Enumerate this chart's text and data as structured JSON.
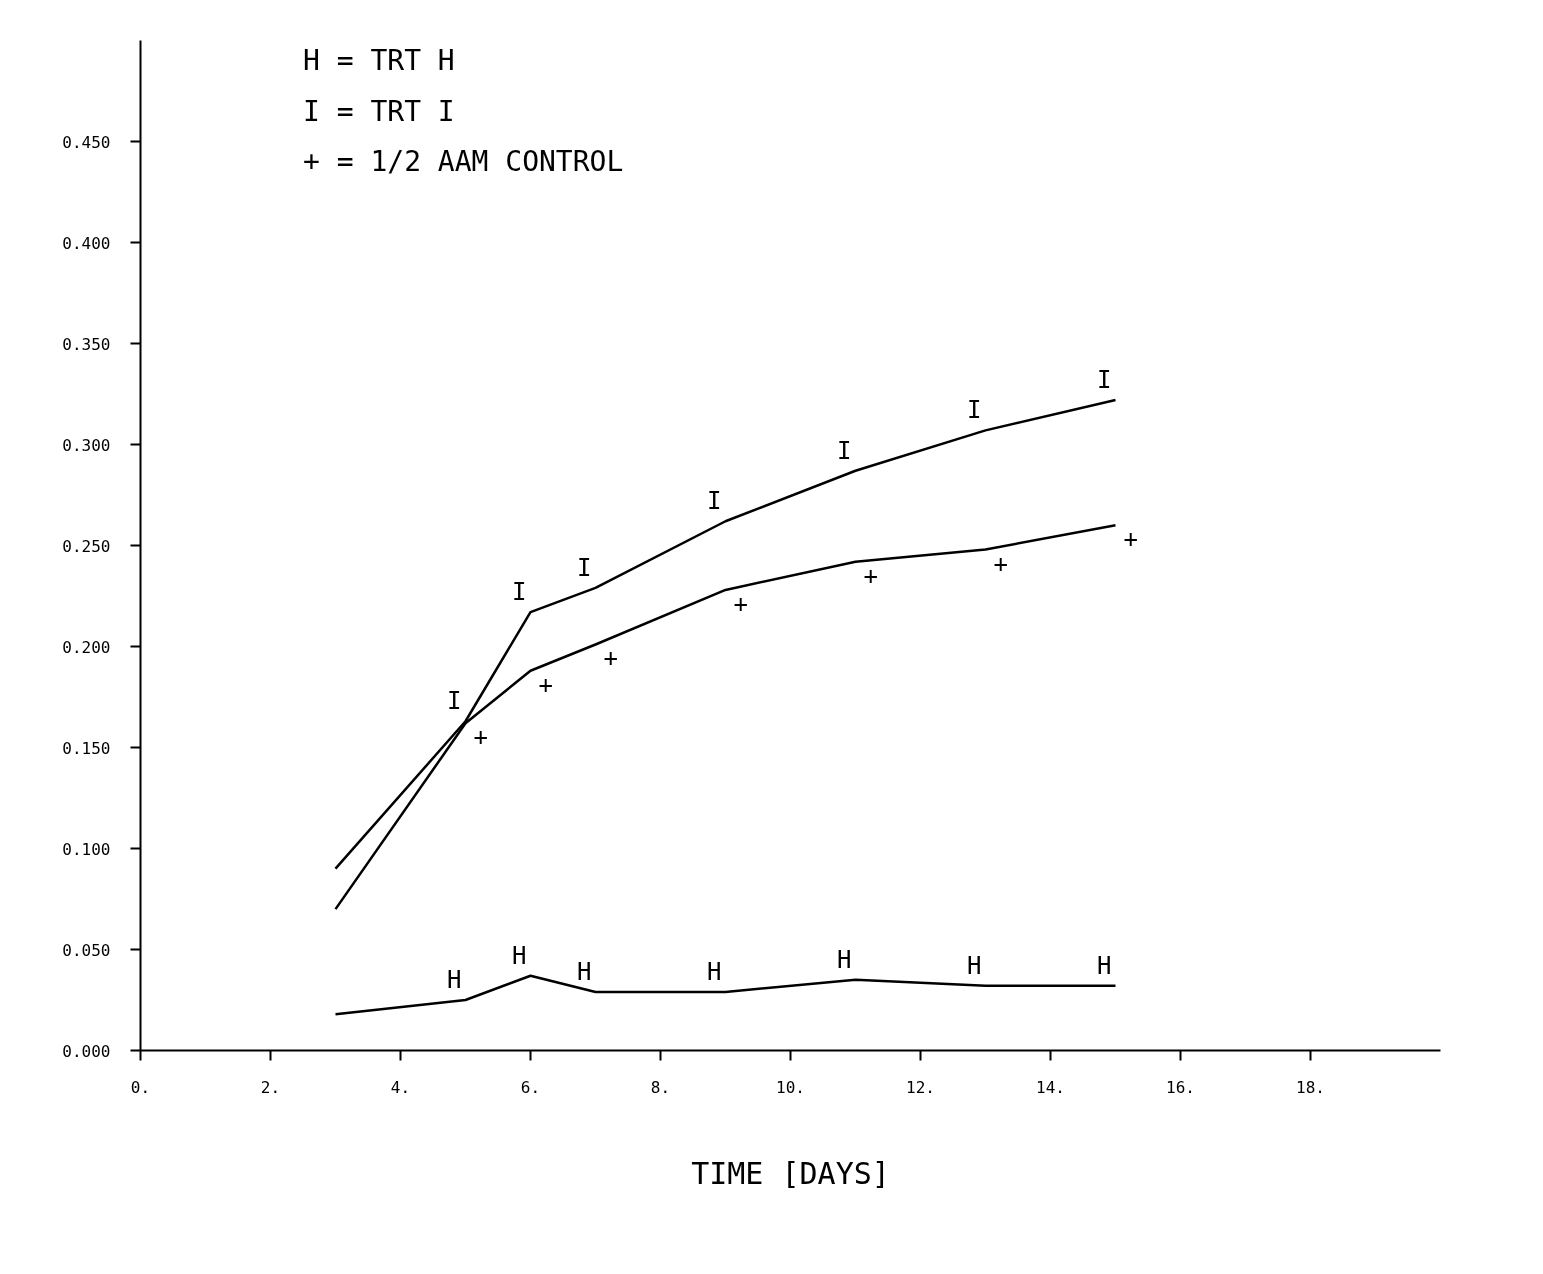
{
  "chart_data": {
    "type": "line",
    "xlabel": "TIME [DAYS]",
    "x": [
      3,
      5,
      6,
      7,
      9,
      11,
      13,
      15
    ],
    "series": [
      {
        "color": "#000000",
        "values": [
          0.018,
          0.025,
          0.037,
          0.029,
          0.029,
          0.035,
          0.032,
          0.032
        ],
        "value_labels": [
          null,
          "H",
          "H",
          "H",
          "H",
          "H",
          "H",
          "H"
        ]
      },
      {
        "color": "#000000",
        "values": [
          0.09,
          0.163,
          0.217,
          0.229,
          0.262,
          0.287,
          0.307,
          0.322
        ],
        "value_labels": [
          null,
          "I",
          "I",
          "I",
          "I",
          "I",
          "I",
          "I"
        ]
      },
      {
        "color": "#000000",
        "values": [
          0.07,
          0.162,
          0.188,
          0.201,
          0.228,
          0.242,
          0.248,
          0.26
        ],
        "value_labels": [
          null,
          "+",
          "+",
          "+",
          "+",
          "+",
          "+",
          "+"
        ]
      }
    ],
    "annotations": [
      "H  =  TRT  H",
      "I  =  TRT  I",
      "+  =  1/2  AAM  CONTROL"
    ],
    "xlim": [
      0,
      20
    ],
    "ylim": [
      0,
      0.5
    ],
    "xticks": [
      {
        "value": 0,
        "label": "0."
      },
      {
        "value": 2,
        "label": "2."
      },
      {
        "value": 4,
        "label": "4."
      },
      {
        "value": 6,
        "label": "6."
      },
      {
        "value": 8,
        "label": "8."
      },
      {
        "value": 10,
        "label": "10."
      },
      {
        "value": 12,
        "label": "12."
      },
      {
        "value": 14,
        "label": "14."
      },
      {
        "value": 16,
        "label": "16."
      },
      {
        "value": 18,
        "label": "18."
      }
    ],
    "yticks": [
      {
        "value": 0,
        "label": "0.000"
      },
      {
        "value": 0.05,
        "label": "0.050"
      },
      {
        "value": 0.1,
        "label": "0.100"
      },
      {
        "value": 0.15,
        "label": "0.150"
      },
      {
        "value": 0.2,
        "label": "0.200"
      },
      {
        "value": 0.25,
        "label": "0.250"
      },
      {
        "value": 0.3,
        "label": "0.300"
      },
      {
        "value": 0.35,
        "label": "0.350"
      },
      {
        "value": 0.4,
        "label": "0.400"
      },
      {
        "value": 0.45,
        "label": "0.450"
      }
    ],
    "grid": false,
    "line_style": "solid"
  }
}
